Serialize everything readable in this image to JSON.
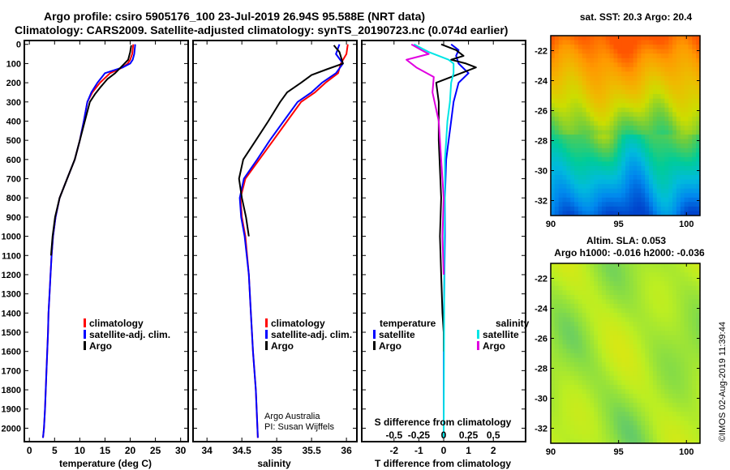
{
  "title": {
    "line1": "Argo profile: csiro 5905176_100 23-Jul-2019 26.94S 95.588E (NRT data)",
    "line2": "Climatology: CARS2009. Satellite-adjusted climatology: synTS_20190723.nc (0.074d earlier)"
  },
  "colors": {
    "climatology": "#ff0000",
    "satellite": "#0000ff",
    "argo": "#000000",
    "sat_salinity": "#00e5e5",
    "argo_salinity": "#e000e0"
  },
  "depth_ticks": [
    "0",
    "100",
    "200",
    "300",
    "400",
    "500",
    "600",
    "700",
    "800",
    "900",
    "1000",
    "1100",
    "1200",
    "1300",
    "1400",
    "1500",
    "1600",
    "1700",
    "1800",
    "1900",
    "2000"
  ],
  "chart_data": [
    {
      "type": "line",
      "id": "temperature",
      "xlabel": "temperature (deg C)",
      "ylabel": "depth",
      "xlim": [
        -1,
        31.5
      ],
      "ylim": [
        2070,
        -20
      ],
      "xticks": [
        "0",
        "5",
        "10",
        "15",
        "20",
        "25",
        "30"
      ],
      "legend": [
        "climatology",
        "satellite-adj. clim.",
        "Argo"
      ],
      "series": [
        {
          "name": "climatology",
          "color": "#ff0000",
          "x": [
            20.6,
            20.4,
            20.0,
            19.5,
            18.5,
            16.0,
            14.0,
            12.5,
            11.5,
            10.8,
            10.0,
            9.0,
            7.5,
            6.0,
            5.2,
            4.7,
            4.4,
            4.2,
            4.0,
            3.8,
            3.7,
            3.4,
            3.1,
            2.9,
            2.7
          ],
          "y": [
            0,
            50,
            80,
            100,
            120,
            150,
            200,
            250,
            300,
            400,
            500,
            600,
            700,
            800,
            900,
            1000,
            1100,
            1200,
            1300,
            1400,
            1500,
            1700,
            1900,
            2000,
            2050
          ]
        },
        {
          "name": "satellite-adj. clim.",
          "color": "#0000ff",
          "x": [
            21.0,
            20.8,
            20.5,
            20.0,
            18.5,
            15.0,
            13.5,
            12.3,
            11.5,
            10.8,
            10.0,
            9.0,
            7.5,
            6.0,
            5.2,
            4.7,
            4.4,
            4.2,
            4.0,
            3.8,
            3.7,
            3.4,
            3.1,
            2.9,
            2.7
          ],
          "y": [
            0,
            50,
            80,
            100,
            120,
            150,
            200,
            250,
            300,
            400,
            500,
            600,
            700,
            800,
            900,
            1000,
            1100,
            1200,
            1300,
            1400,
            1500,
            1700,
            1900,
            2000,
            2050
          ]
        },
        {
          "name": "Argo",
          "color": "#000000",
          "x": [
            20.2,
            20.0,
            19.6,
            18.5,
            17.0,
            15.5,
            14.2,
            13.0,
            12.0,
            11.0,
            10.0,
            9.0,
            7.5,
            6.0,
            5.1,
            4.6,
            4.3
          ],
          "y": [
            5,
            40,
            80,
            110,
            150,
            180,
            220,
            260,
            300,
            400,
            500,
            600,
            700,
            800,
            900,
            1000,
            1100
          ]
        }
      ]
    },
    {
      "type": "line",
      "id": "salinity",
      "xlabel": "salinity",
      "ylabel": "depth",
      "xlim": [
        33.8,
        36.15
      ],
      "ylim": [
        2070,
        -20
      ],
      "xticks": [
        "34",
        "34.5",
        "35",
        "35.5",
        "36"
      ],
      "legend": [
        "climatology",
        "satellite-adj. clim.",
        "Argo"
      ],
      "annotation": [
        "Argo Australia",
        "PI: Susan Wijffels"
      ],
      "series": [
        {
          "name": "climatology",
          "color": "#ff0000",
          "x": [
            36.02,
            36.0,
            35.92,
            35.88,
            35.7,
            35.55,
            35.35,
            35.15,
            34.95,
            34.75,
            34.55,
            34.48,
            34.5,
            34.55,
            34.6,
            34.63,
            34.66,
            34.7,
            34.73
          ],
          "y": [
            0,
            50,
            100,
            150,
            200,
            250,
            300,
            400,
            500,
            600,
            700,
            800,
            900,
            1000,
            1200,
            1400,
            1600,
            1800,
            2050
          ]
        },
        {
          "name": "satellite-adj. clim.",
          "color": "#0000ff",
          "x": [
            35.9,
            35.85,
            35.95,
            35.85,
            35.65,
            35.5,
            35.3,
            35.1,
            34.9,
            34.72,
            34.53,
            34.47,
            34.49,
            34.54,
            34.6,
            34.63,
            34.66,
            34.7,
            34.73
          ],
          "y": [
            0,
            50,
            100,
            150,
            200,
            250,
            300,
            400,
            500,
            600,
            700,
            800,
            900,
            1000,
            1200,
            1400,
            1600,
            1800,
            2050
          ]
        },
        {
          "name": "Argo",
          "color": "#000000",
          "x": [
            35.82,
            35.9,
            35.95,
            35.72,
            35.5,
            35.35,
            35.15,
            35.05,
            34.88,
            34.7,
            34.52,
            34.46,
            34.5,
            34.56,
            34.6
          ],
          "y": [
            5,
            40,
            100,
            130,
            160,
            200,
            250,
            300,
            400,
            500,
            600,
            700,
            800,
            900,
            1000
          ]
        }
      ]
    },
    {
      "type": "line",
      "id": "difference",
      "xlabel": "T difference from climatology",
      "xlabel_top": "S difference from climatology",
      "xlim": [
        -3.3,
        3.3
      ],
      "ylim": [
        2070,
        -20
      ],
      "xticks": [
        "-2",
        "-1",
        "0",
        "1",
        "2"
      ],
      "xticks_top": [
        "-0.5",
        "-0.25",
        "0",
        "0.25",
        "0.5"
      ],
      "legend_t": {
        "heading": "temperature",
        "items": [
          "satellite",
          "Argo"
        ]
      },
      "legend_s": {
        "heading": "salinity",
        "items": [
          "satellite",
          "Argo"
        ]
      },
      "series": [
        {
          "name": "T satellite",
          "color": "#0000ff",
          "x": [
            0.3,
            0.6,
            0.5,
            0.6,
            1.0,
            0.6,
            0.4,
            0.3,
            0.2,
            0.1,
            0.05,
            0.05,
            0.0,
            0.0
          ],
          "y": [
            0,
            30,
            60,
            100,
            150,
            200,
            300,
            400,
            500,
            600,
            800,
            1000,
            1500,
            2050
          ]
        },
        {
          "name": "T Argo",
          "color": "#000000",
          "x": [
            -0.1,
            0.5,
            0.8,
            0.3,
            0.9,
            1.3,
            0.7,
            -0.3,
            -0.2,
            -0.2,
            -0.1,
            -0.15,
            -0.1,
            -0.05,
            0.0,
            0.0
          ],
          "y": [
            0,
            30,
            60,
            80,
            100,
            120,
            150,
            200,
            300,
            500,
            800,
            1000,
            1200,
            1400,
            1500,
            1600
          ]
        },
        {
          "name": "S satellite",
          "color": "#00e5e5",
          "x": [
            -1.2,
            -0.6,
            0.2,
            0.4,
            0.4,
            0.3,
            0.25,
            0.15,
            0.1,
            0.05,
            0.05,
            0.03,
            0.0
          ],
          "y": [
            0,
            40,
            80,
            100,
            150,
            200,
            300,
            400,
            500,
            600,
            800,
            1000,
            2050
          ]
        },
        {
          "name": "S Argo",
          "color": "#e000e0",
          "x": [
            -1.3,
            -0.9,
            -0.6,
            -1.5,
            -1.1,
            -0.4,
            -0.45,
            -0.2,
            -0.1,
            0.0,
            -0.05,
            0.0
          ],
          "y": [
            0,
            30,
            50,
            80,
            120,
            170,
            250,
            400,
            600,
            800,
            1000,
            1200
          ]
        }
      ]
    },
    {
      "type": "heatmap",
      "id": "sst_map",
      "title": "sat. SST: 20.3 Argo: 20.4",
      "xlim": [
        90,
        101
      ],
      "ylim": [
        -33,
        -21
      ],
      "xticks": [
        "90",
        "95",
        "100"
      ],
      "yticks": [
        "-22",
        "-24",
        "-26",
        "-28",
        "-30",
        "-32"
      ],
      "colormap": [
        "#ff5500",
        "#ff9900",
        "#eebb00",
        "#ccdd00",
        "#66cc44",
        "#00cc99",
        "#00bbdd",
        "#0088ee",
        "#0044cc"
      ]
    },
    {
      "type": "heatmap",
      "id": "sla_map",
      "title": "Altim. SLA: 0.053",
      "subtitle": "Argo h1000: -0.016 h2000: -0.036",
      "xlim": [
        90,
        101
      ],
      "ylim": [
        -33,
        -21
      ],
      "xticks": [
        "90",
        "95",
        "100"
      ],
      "yticks": [
        "-22",
        "-24",
        "-26",
        "-28",
        "-30",
        "-32"
      ],
      "colormap": [
        "#44bb88",
        "#88dd44",
        "#bbee22",
        "#dde611"
      ]
    }
  ],
  "credit": "©IMOS 02-Aug-2019 11:39:44"
}
